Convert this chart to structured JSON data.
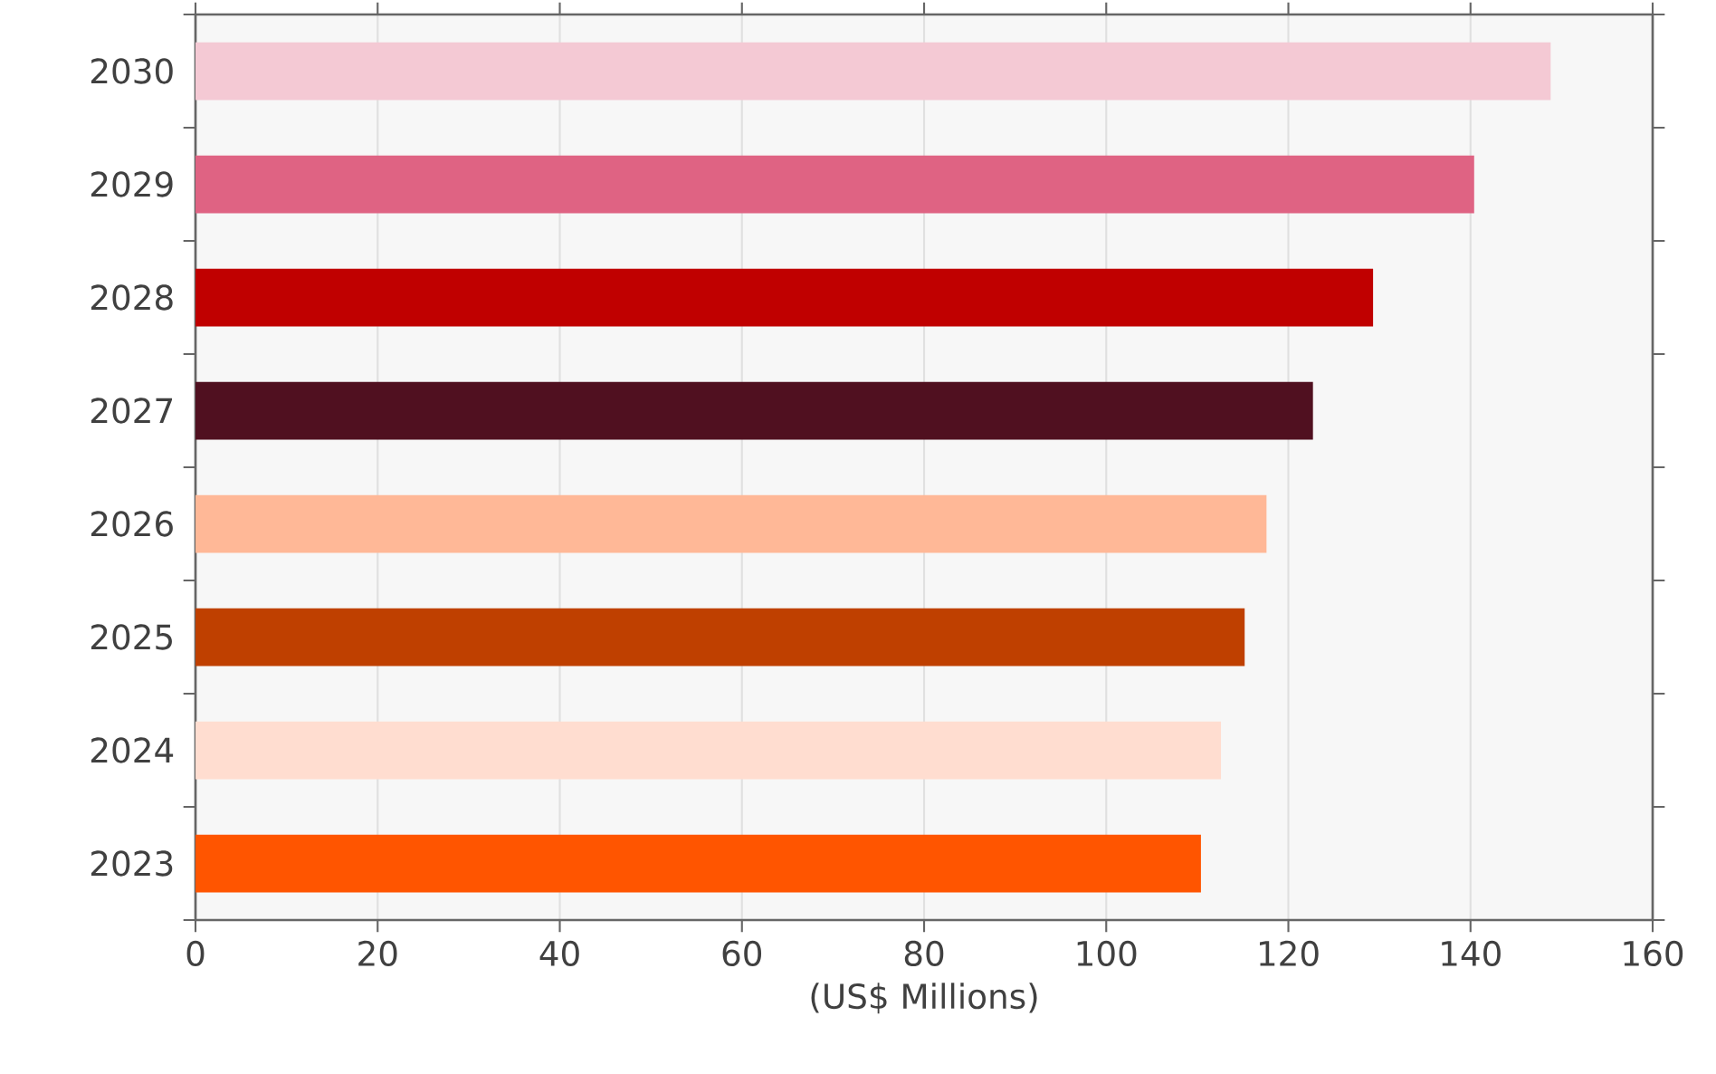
{
  "chart_data": {
    "type": "bar",
    "orientation": "horizontal",
    "xlabel": "(US$ Millions)",
    "categories": [
      "2030",
      "2029",
      "2028",
      "2027",
      "2026",
      "2025",
      "2024",
      "2023"
    ],
    "values": [
      148.8,
      140.4,
      129.3,
      122.7,
      117.6,
      115.2,
      112.6,
      110.4
    ],
    "colors": [
      "#f4c9d4",
      "#df6383",
      "#c00000",
      "#501020",
      "#ffb897",
      "#bf4000",
      "#ffddd0",
      "#ff5500"
    ],
    "xlim": [
      0,
      160
    ],
    "xticks": [
      0,
      20,
      40,
      60,
      80,
      100,
      120,
      140,
      160
    ],
    "grid": "x"
  }
}
